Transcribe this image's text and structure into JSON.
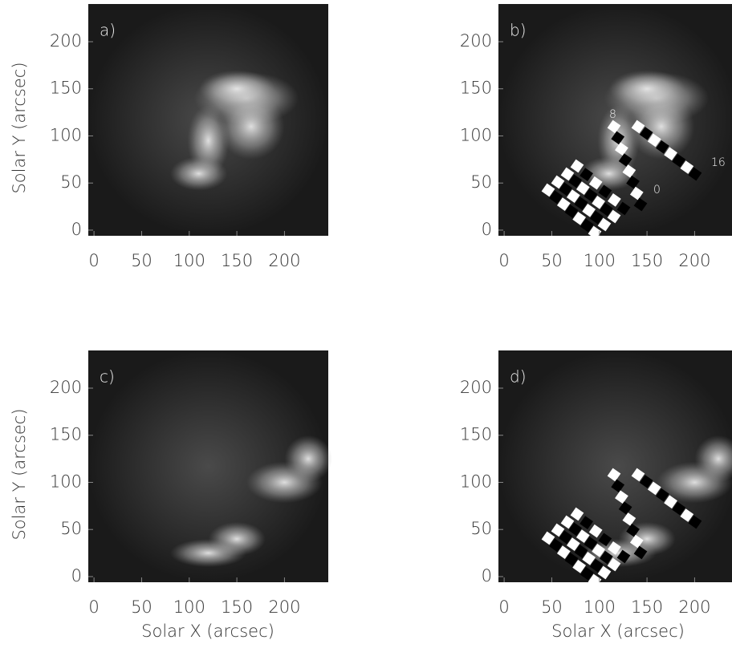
{
  "chart_data": [
    {
      "type": "image",
      "panel_label": "a)",
      "xlim": [
        -6,
        246
      ],
      "ylim": [
        -6,
        240
      ],
      "xticks": [
        0,
        50,
        100,
        150,
        200
      ],
      "yticks": [
        0,
        50,
        100,
        150,
        200
      ],
      "ylabel": "Solar Y (arcsec)"
    },
    {
      "type": "image",
      "panel_label": "b)",
      "xlim": [
        -6,
        246
      ],
      "ylim": [
        -6,
        240
      ],
      "xticks": [
        0,
        50,
        100,
        150,
        200
      ],
      "yticks": [
        0,
        50,
        100,
        150,
        200
      ],
      "annotations": [
        "8",
        "0",
        "16"
      ]
    },
    {
      "type": "image",
      "panel_label": "c)",
      "xlim": [
        -6,
        246
      ],
      "ylim": [
        -6,
        240
      ],
      "xticks": [
        0,
        50,
        100,
        150,
        200
      ],
      "yticks": [
        0,
        50,
        100,
        150,
        200
      ],
      "ylabel": "Solar Y (arcsec)",
      "xlabel": "Solar X (arcsec)"
    },
    {
      "type": "image",
      "panel_label": "d)",
      "xlim": [
        -6,
        246
      ],
      "ylim": [
        -6,
        240
      ],
      "xticks": [
        0,
        50,
        100,
        150,
        200
      ],
      "yticks": [
        0,
        50,
        100,
        150,
        200
      ],
      "xlabel": "Solar X (arcsec)"
    }
  ]
}
